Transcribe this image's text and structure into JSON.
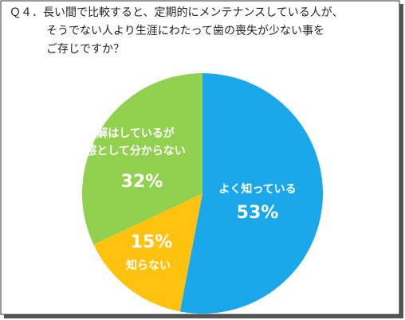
{
  "chart_data": {
    "type": "pie",
    "title": [
      "Ｑ４．長い間で比較すると、定期的にメンテナンスしている人が、",
      "そうでない人より生涯にわたって歯の喪失が少ない事を",
      "ご存じですか？"
    ],
    "categories": [
      [
        "よく知っている"
      ],
      [
        "知らない"
      ],
      [
        "理解はしているが",
        "実感として分からない"
      ]
    ],
    "values": [
      53,
      15,
      32
    ],
    "value_labels": [
      "53%",
      "15%",
      "32%"
    ],
    "colors": [
      "#1ba8ea",
      "#ffc30f",
      "#92d050"
    ]
  }
}
